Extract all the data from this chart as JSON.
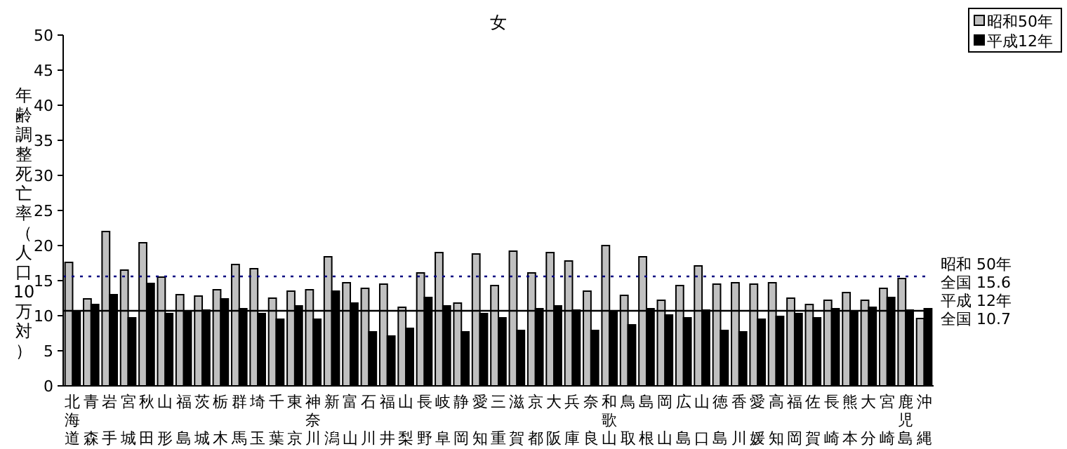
{
  "chart_data": {
    "type": "bar",
    "title": "女",
    "ylabel": "年齢調整死亡率（人口10万対）",
    "categories": [
      "北海道",
      "青森",
      "岩手",
      "宮城",
      "秋田",
      "山形",
      "福島",
      "茨城",
      "栃木",
      "群馬",
      "埼玉",
      "千葉",
      "東京",
      "神奈川",
      "新潟",
      "富山",
      "石川",
      "福井",
      "山梨",
      "長野",
      "岐阜",
      "静岡",
      "愛知",
      "三重",
      "滋賀",
      "京都",
      "大阪",
      "兵庫",
      "奈良",
      "和歌山",
      "鳥取",
      "島根",
      "岡山",
      "広島",
      "山口",
      "徳島",
      "香川",
      "愛媛",
      "高知",
      "福岡",
      "佐賀",
      "長崎",
      "熊本",
      "大分",
      "宮崎",
      "鹿児島",
      "沖縄"
    ],
    "series": [
      {
        "name": "昭和50年",
        "color": "#c0c0c0",
        "values": [
          17.6,
          12.4,
          22.0,
          16.5,
          20.4,
          15.5,
          13.0,
          12.8,
          13.7,
          17.3,
          16.7,
          12.5,
          13.5,
          13.7,
          18.4,
          14.7,
          13.9,
          14.5,
          11.2,
          16.1,
          19.0,
          11.8,
          18.8,
          14.3,
          19.2,
          16.1,
          19.0,
          17.8,
          13.5,
          20.0,
          12.9,
          18.4,
          12.2,
          14.3,
          17.1,
          14.5,
          14.7,
          14.5,
          14.7,
          12.5,
          11.6,
          12.2,
          13.3,
          12.2,
          13.9,
          15.3,
          9.6
        ]
      },
      {
        "name": "平成12年",
        "color": "#000000",
        "values": [
          10.6,
          11.6,
          13.0,
          9.7,
          14.6,
          10.3,
          10.6,
          10.8,
          12.4,
          11.0,
          10.3,
          9.5,
          11.4,
          9.5,
          13.5,
          11.8,
          7.7,
          7.1,
          8.2,
          12.6,
          11.4,
          7.7,
          10.3,
          9.7,
          7.9,
          11.0,
          11.4,
          10.8,
          7.9,
          10.6,
          8.7,
          11.0,
          10.1,
          9.7,
          10.8,
          7.9,
          7.7,
          9.5,
          9.9,
          10.3,
          9.7,
          11.0,
          10.6,
          11.2,
          12.6,
          10.8,
          11.0
        ]
      }
    ],
    "ylim": [
      0,
      50
    ],
    "yticks": [
      0,
      5,
      10,
      15,
      20,
      25,
      30,
      35,
      40,
      45,
      50
    ],
    "grid": false,
    "legend": "top right",
    "ref_lines": [
      {
        "axis": "y",
        "value": 15.6,
        "label": "昭和 50年全国 15.6",
        "color": "#000080",
        "line_style": "dotted"
      },
      {
        "axis": "y",
        "value": 10.7,
        "label": "平成 12年全国 10.7",
        "color": "#000000",
        "line_style": "solid"
      }
    ]
  }
}
